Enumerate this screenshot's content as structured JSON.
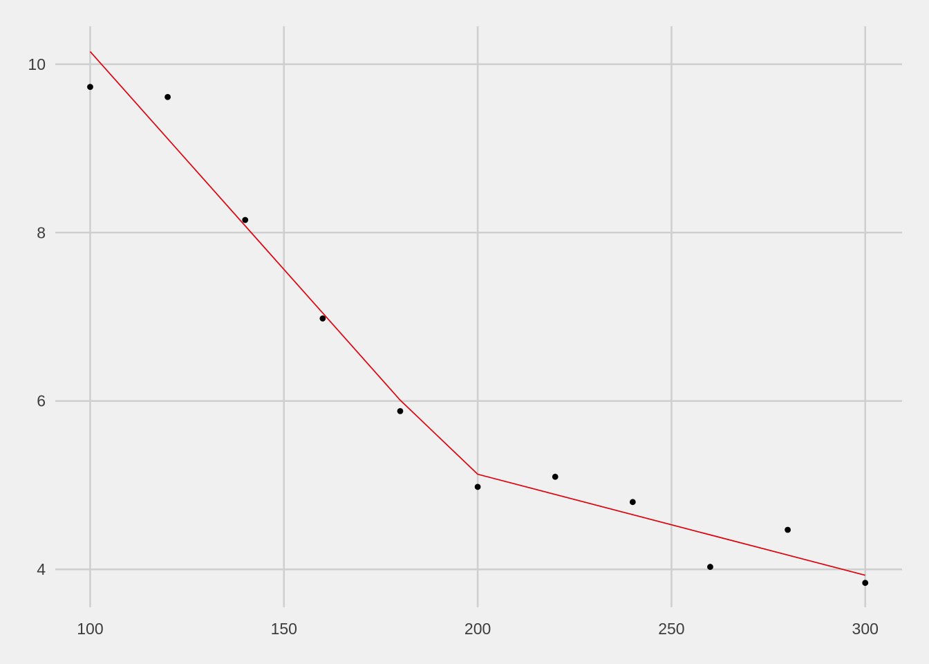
{
  "chart_data": {
    "type": "scatter",
    "title": "",
    "xlabel": "",
    "ylabel": "",
    "xlim": [
      91,
      309.5
    ],
    "ylim": [
      3.55,
      10.45
    ],
    "grid": true,
    "legend": "none",
    "x_ticks": [
      100,
      150,
      200,
      250,
      300
    ],
    "x_tick_labels": [
      "100",
      "150",
      "200",
      "250",
      "300"
    ],
    "y_ticks": [
      4,
      6,
      8,
      10
    ],
    "y_tick_labels": [
      "4",
      "6",
      "8",
      "10"
    ],
    "points": {
      "x": [
        100,
        120,
        140,
        160,
        180,
        200,
        220,
        240,
        260,
        280,
        300
      ],
      "y": [
        9.73,
        9.61,
        8.15,
        6.98,
        5.88,
        4.98,
        5.1,
        4.8,
        4.03,
        4.47,
        3.84
      ],
      "color": "#000000"
    },
    "fit_line": {
      "x": [
        100,
        180,
        200,
        300
      ],
      "y": [
        10.15,
        6.01,
        5.13,
        3.93
      ],
      "color": "#e0000b"
    }
  }
}
